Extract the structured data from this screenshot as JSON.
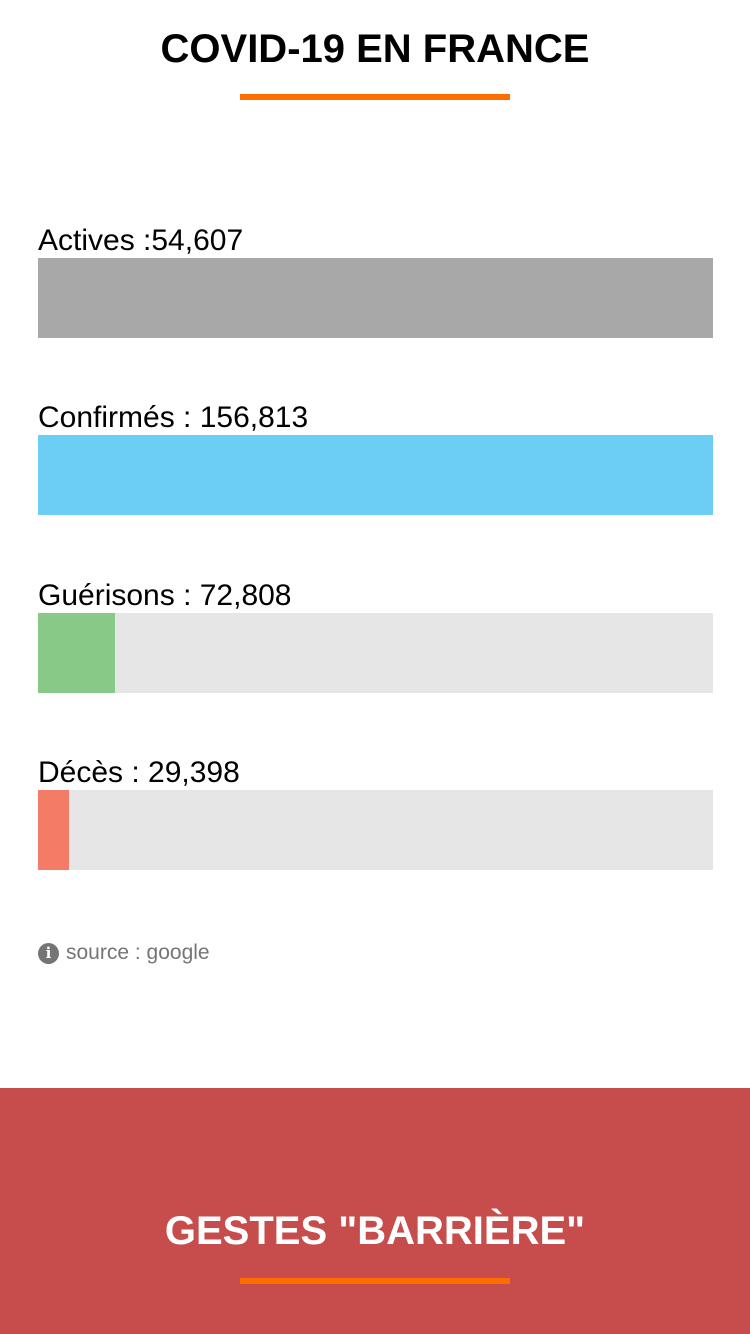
{
  "header": {
    "title": "COVID-19 EN FRANCE",
    "accent_color": "#ff6d00"
  },
  "stats": [
    {
      "key": "actives",
      "label": "Actives :54,607",
      "value": 54607,
      "fill_fraction": 1.0,
      "color": "#a8a8a8"
    },
    {
      "key": "confirmes",
      "label": "Confirmés : 156,813",
      "value": 156813,
      "fill_fraction": 1.0,
      "color": "#6ccef5"
    },
    {
      "key": "guerisons",
      "label": "Guérisons : 72,808",
      "value": 72808,
      "fill_fraction": 0.114,
      "color": "#88c988"
    },
    {
      "key": "deces",
      "label": "Décès : 29,398",
      "value": 29398,
      "fill_fraction": 0.046,
      "color": "#f47c66"
    }
  ],
  "track_color": "#e6e6e6",
  "source": {
    "icon": "info-icon",
    "text": "source : google"
  },
  "footer": {
    "title": "GESTES \"BARRIÈRE\"",
    "background_color": "#c74d4d",
    "accent_color": "#ff6d00"
  }
}
